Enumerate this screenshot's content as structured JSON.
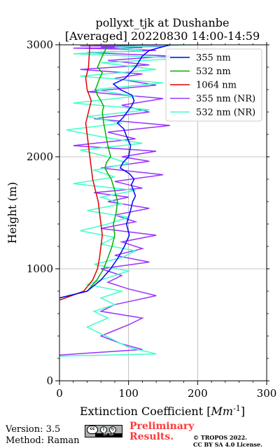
{
  "chart_data": {
    "type": "line",
    "title": [
      "pollyxt_tjk at Dushanbe",
      "[Averaged] 20220830 14:00-14:59"
    ],
    "xlabel": "Extinction Coefficient [Mm⁻¹]",
    "ylabel": "Height (m)",
    "xlim": [
      0,
      300
    ],
    "ylim": [
      0,
      3000
    ],
    "xticks": [
      "0",
      "100",
      "200",
      "300"
    ],
    "yticks": [
      "0",
      "1000",
      "2000",
      "3000"
    ],
    "grid": true,
    "legend_position": "top-right",
    "series": [
      {
        "name": "355 nm",
        "color": "#0000ff",
        "x": [
          0,
          40,
          60,
          74,
          85,
          94,
          101,
          97,
          102,
          106,
          110,
          107,
          104,
          108,
          101,
          88,
          92,
          100,
          103,
          96,
          93,
          84,
          92,
          98,
          104,
          108,
          105,
          88,
          78,
          95,
          110,
          120,
          130,
          160
        ],
        "y": [
          740,
          800,
          900,
          1000,
          1100,
          1200,
          1300,
          1400,
          1500,
          1600,
          1650,
          1700,
          1750,
          1800,
          1850,
          1900,
          1950,
          2000,
          2100,
          2200,
          2250,
          2300,
          2350,
          2400,
          2450,
          2500,
          2550,
          2600,
          2650,
          2700,
          2800,
          2900,
          2950,
          3000
        ]
      },
      {
        "name": "532 nm",
        "color": "#00b000",
        "x": [
          0,
          40,
          54,
          64,
          70,
          76,
          80,
          78,
          82,
          84,
          80,
          75,
          70,
          66,
          68,
          74,
          70,
          67,
          64,
          62,
          64,
          60,
          55,
          52,
          55,
          58,
          62,
          55,
          62,
          70
        ],
        "y": [
          740,
          800,
          900,
          1000,
          1100,
          1200,
          1300,
          1400,
          1500,
          1600,
          1700,
          1800,
          1850,
          1900,
          1950,
          2000,
          2100,
          2200,
          2300,
          2400,
          2450,
          2500,
          2550,
          2600,
          2650,
          2700,
          2750,
          2800,
          2900,
          3000
        ]
      },
      {
        "name": "1064 nm",
        "color": "#e00000",
        "x": [
          0,
          35,
          48,
          55,
          58,
          60,
          62,
          60,
          58,
          56,
          52,
          48,
          46,
          44,
          42,
          40,
          38,
          42,
          46,
          40,
          38,
          42,
          44
        ],
        "y": [
          720,
          800,
          900,
          1000,
          1100,
          1200,
          1300,
          1400,
          1500,
          1600,
          1700,
          1800,
          1900,
          2000,
          2100,
          2200,
          2300,
          2400,
          2500,
          2600,
          2700,
          2800,
          3000
        ]
      },
      {
        "name": "355 nm (NR)",
        "color": "#9933ff",
        "x": [
          0,
          120,
          90,
          60,
          80,
          100,
          120,
          60,
          80,
          110,
          140,
          100,
          70,
          90,
          60,
          130,
          80,
          120,
          90,
          140,
          60,
          110,
          80,
          130,
          70,
          100,
          50,
          120,
          80,
          150,
          60,
          130,
          90,
          140,
          20,
          110,
          70,
          160,
          50,
          130,
          90,
          150,
          40,
          140,
          80,
          120,
          30,
          130,
          70,
          160,
          40,
          140,
          100,
          20,
          120,
          60,
          150,
          30,
          110,
          50,
          160,
          60,
          220
        ],
        "y": [
          230,
          280,
          330,
          400,
          450,
          500,
          560,
          620,
          680,
          720,
          760,
          820,
          880,
          940,
          1000,
          1060,
          1120,
          1180,
          1240,
          1300,
          1360,
          1420,
          1480,
          1540,
          1600,
          1640,
          1680,
          1720,
          1780,
          1840,
          1900,
          1960,
          2000,
          2050,
          2100,
          2160,
          2220,
          2280,
          2340,
          2400,
          2460,
          2520,
          2580,
          2640,
          2700,
          2740,
          2780,
          2820,
          2860,
          2900,
          2930,
          2950,
          2960,
          2970,
          2975,
          2980,
          2985,
          2990,
          2993,
          2996,
          2998,
          2999,
          3000
        ]
      },
      {
        "name": "532 nm (NR)",
        "color": "#40ffc8",
        "x": [
          0,
          140,
          100,
          80,
          60,
          40,
          70,
          50,
          80,
          60,
          90,
          40,
          70,
          100,
          50,
          90,
          110,
          60,
          80,
          30,
          70,
          100,
          40,
          90,
          60,
          110,
          20,
          80,
          50,
          100,
          70,
          30,
          120,
          60,
          10,
          90,
          40,
          130,
          20,
          110,
          50,
          150,
          30,
          140,
          60,
          180,
          20,
          120,
          80,
          200
        ],
        "y": [
          220,
          240,
          300,
          360,
          420,
          480,
          560,
          620,
          680,
          740,
          800,
          860,
          920,
          980,
          1040,
          1100,
          1160,
          1220,
          1280,
          1340,
          1400,
          1460,
          1520,
          1580,
          1640,
          1700,
          1760,
          1820,
          1880,
          1940,
          2000,
          2060,
          2120,
          2180,
          2240,
          2300,
          2360,
          2420,
          2480,
          2540,
          2600,
          2660,
          2720,
          2780,
          2840,
          2880,
          2920,
          2950,
          2980,
          3000
        ]
      }
    ]
  },
  "footer": {
    "version": "Version: 3.5",
    "method": "Method: Raman",
    "cc_label": "BY SA",
    "preliminary_1": "Preliminary",
    "preliminary_2": "Results.",
    "copyright_1": "© TROPOS 2022.",
    "copyright_2": "CC BY SA 4.0 License."
  }
}
